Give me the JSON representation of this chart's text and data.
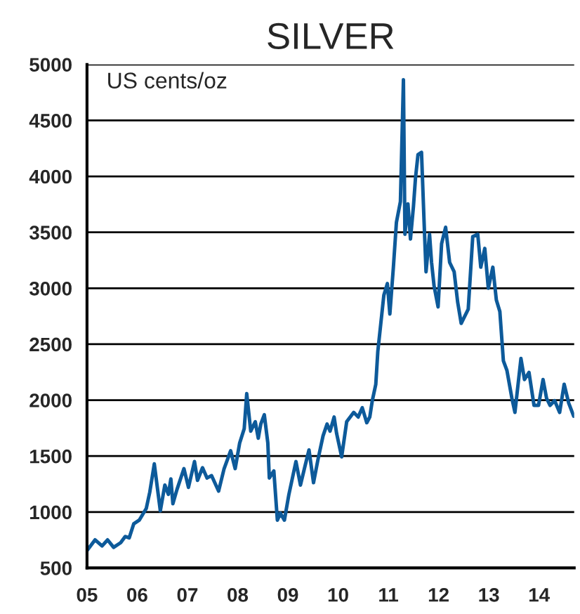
{
  "chart_data": {
    "type": "line",
    "title": "SILVER",
    "annotations": [
      "US cents/oz"
    ],
    "xlim": [
      2005,
      2014.7
    ],
    "xticks": [
      {
        "value": 2005,
        "label": "05"
      },
      {
        "value": 2006,
        "label": "06"
      },
      {
        "value": 2007,
        "label": "07"
      },
      {
        "value": 2008,
        "label": "08"
      },
      {
        "value": 2009,
        "label": "09"
      },
      {
        "value": 2010,
        "label": "10"
      },
      {
        "value": 2011,
        "label": "11"
      },
      {
        "value": 2012,
        "label": "12"
      },
      {
        "value": 2013,
        "label": "13"
      },
      {
        "value": 2014,
        "label": "14"
      }
    ],
    "ylim": [
      500,
      5000
    ],
    "yticks": [
      500,
      1000,
      1500,
      2000,
      2500,
      3000,
      3500,
      4000,
      4500,
      5000
    ],
    "grid": "y",
    "marker": "none",
    "line_style": "solid",
    "series": [
      {
        "color": "#0d5a9a",
        "x": [
          2005.0,
          2005.16,
          2005.3,
          2005.41,
          2005.53,
          2005.67,
          2005.76,
          2005.84,
          2005.93,
          2006.04,
          2006.18,
          2006.25,
          2006.34,
          2006.46,
          2006.55,
          2006.62,
          2006.67,
          2006.71,
          2006.79,
          2006.93,
          2007.02,
          2007.14,
          2007.2,
          2007.3,
          2007.39,
          2007.48,
          2007.62,
          2007.73,
          2007.86,
          2007.95,
          2008.04,
          2008.13,
          2008.18,
          2008.26,
          2008.35,
          2008.41,
          2008.46,
          2008.53,
          2008.6,
          2008.63,
          2008.72,
          2008.79,
          2008.85,
          2008.93,
          2009.02,
          2009.16,
          2009.25,
          2009.34,
          2009.42,
          2009.51,
          2009.6,
          2009.7,
          2009.78,
          2009.84,
          2009.92,
          2009.97,
          2010.07,
          2010.17,
          2010.31,
          2010.4,
          2010.48,
          2010.57,
          2010.63,
          2010.68,
          2010.75,
          2010.79,
          2010.85,
          2010.91,
          2010.98,
          2011.03,
          2011.1,
          2011.16,
          2011.24,
          2011.3,
          2011.33,
          2011.39,
          2011.44,
          2011.5,
          2011.54,
          2011.59,
          2011.66,
          2011.71,
          2011.75,
          2011.82,
          2011.86,
          2011.91,
          2011.99,
          2012.06,
          2012.14,
          2012.22,
          2012.31,
          2012.38,
          2012.45,
          2012.59,
          2012.68,
          2012.78,
          2012.84,
          2012.92,
          2012.99,
          2013.08,
          2013.15,
          2013.22,
          2013.29,
          2013.36,
          2013.46,
          2013.52,
          2013.64,
          2013.71,
          2013.8,
          2013.9,
          2013.99,
          2014.08,
          2014.15,
          2014.22,
          2014.31,
          2014.41,
          2014.5,
          2014.59,
          2014.69
        ],
        "values": [
          655,
          751,
          697,
          751,
          684,
          726,
          781,
          768,
          894,
          927,
          1032,
          1178,
          1430,
          1011,
          1241,
          1158,
          1296,
          1074,
          1199,
          1388,
          1220,
          1451,
          1283,
          1396,
          1304,
          1325,
          1187,
          1388,
          1547,
          1388,
          1618,
          1744,
          2058,
          1723,
          1807,
          1660,
          1786,
          1869,
          1618,
          1304,
          1367,
          927,
          990,
          927,
          1158,
          1451,
          1241,
          1409,
          1555,
          1262,
          1472,
          1681,
          1786,
          1723,
          1849,
          1702,
          1493,
          1807,
          1890,
          1849,
          1932,
          1798,
          1849,
          1995,
          2142,
          2435,
          2686,
          2937,
          3042,
          2770,
          3188,
          3587,
          3775,
          4864,
          3482,
          3754,
          3440,
          3733,
          3984,
          4194,
          4215,
          3607,
          3147,
          3482,
          3231,
          3021,
          2833,
          3398,
          3545,
          3231,
          3147,
          2875,
          2686,
          2812,
          3461,
          3482,
          3188,
          3356,
          3000,
          3188,
          2895,
          2791,
          2351,
          2267,
          2016,
          1890,
          2372,
          2184,
          2247,
          1953,
          1953,
          2184,
          2016,
          1953,
          1995,
          1890,
          2142,
          1974,
          1857
        ]
      }
    ]
  }
}
